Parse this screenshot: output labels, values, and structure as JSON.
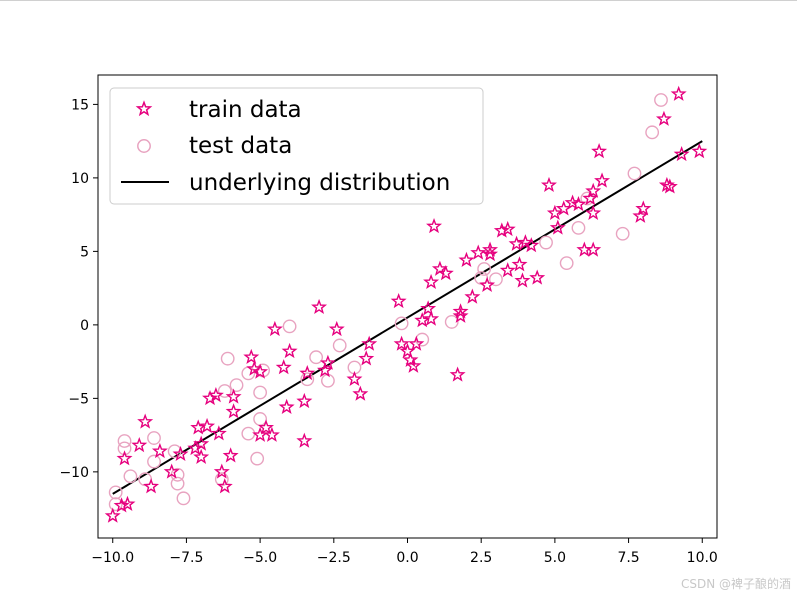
{
  "watermark": "CSDN @裨子酿的酒",
  "chart_data": {
    "type": "scatter",
    "title": "",
    "xlabel": "",
    "ylabel": "",
    "xlim": [
      -10.5,
      10.5
    ],
    "ylim": [
      -14.5,
      17.0
    ],
    "grid": false,
    "legend_position": "top-left",
    "x_ticks": [
      -10.0,
      -7.5,
      -5.0,
      -2.5,
      0.0,
      2.5,
      5.0,
      7.5,
      10.0
    ],
    "x_tick_labels": [
      "−10.0",
      "−7.5",
      "−5.0",
      "−2.5",
      "0.0",
      "2.5",
      "5.0",
      "7.5",
      "10.0"
    ],
    "y_ticks": [
      -10,
      -5,
      0,
      5,
      10,
      15
    ],
    "y_tick_labels": [
      "−10",
      "−5",
      "0",
      "5",
      "10",
      "15"
    ],
    "colors": {
      "train": "#e6007e",
      "test": "#e8a3c0",
      "line": "#000000"
    },
    "series": [
      {
        "name": "train data",
        "marker": "star",
        "points": [
          [
            -10.0,
            -13.0
          ],
          [
            -9.7,
            -12.3
          ],
          [
            -9.5,
            -12.2
          ],
          [
            -9.6,
            -9.1
          ],
          [
            -9.1,
            -8.2
          ],
          [
            -8.9,
            -6.6
          ],
          [
            -8.7,
            -11.0
          ],
          [
            -8.4,
            -8.6
          ],
          [
            -8.0,
            -10.0
          ],
          [
            -7.7,
            -8.8
          ],
          [
            -7.2,
            -8.4
          ],
          [
            -7.1,
            -7.0
          ],
          [
            -7.0,
            -9.0
          ],
          [
            -7.0,
            -8.1
          ],
          [
            -6.8,
            -6.9
          ],
          [
            -6.7,
            -5.0
          ],
          [
            -6.5,
            -4.8
          ],
          [
            -6.4,
            -7.4
          ],
          [
            -6.3,
            -10.0
          ],
          [
            -6.2,
            -11.0
          ],
          [
            -6.0,
            -8.9
          ],
          [
            -5.9,
            -5.9
          ],
          [
            -5.9,
            -4.9
          ],
          [
            -5.3,
            -2.2
          ],
          [
            -5.2,
            -3.0
          ],
          [
            -5.0,
            -3.2
          ],
          [
            -5.0,
            -7.5
          ],
          [
            -4.8,
            -7.0
          ],
          [
            -4.6,
            -7.5
          ],
          [
            -4.5,
            -0.3
          ],
          [
            -4.2,
            -2.9
          ],
          [
            -4.0,
            -1.8
          ],
          [
            -4.1,
            -5.6
          ],
          [
            -3.5,
            -5.2
          ],
          [
            -3.5,
            -7.9
          ],
          [
            -3.4,
            -3.3
          ],
          [
            -3.0,
            1.2
          ],
          [
            -2.8,
            -3.1
          ],
          [
            -2.7,
            -2.6
          ],
          [
            -2.4,
            -0.3
          ],
          [
            -1.8,
            -3.7
          ],
          [
            -1.6,
            -4.7
          ],
          [
            -1.4,
            -2.3
          ],
          [
            -1.3,
            -1.3
          ],
          [
            -0.3,
            1.6
          ],
          [
            -0.2,
            -1.3
          ],
          [
            0.0,
            -1.8
          ],
          [
            0.1,
            -2.4
          ],
          [
            0.2,
            -2.8
          ],
          [
            0.3,
            -1.3
          ],
          [
            0.5,
            0.3
          ],
          [
            0.7,
            1.1
          ],
          [
            0.8,
            0.4
          ],
          [
            0.8,
            2.9
          ],
          [
            0.9,
            6.7
          ],
          [
            1.1,
            3.8
          ],
          [
            1.3,
            3.5
          ],
          [
            1.7,
            -3.4
          ],
          [
            1.8,
            0.6
          ],
          [
            1.8,
            0.9
          ],
          [
            2.0,
            4.4
          ],
          [
            2.2,
            1.9
          ],
          [
            2.4,
            4.9
          ],
          [
            2.7,
            2.7
          ],
          [
            2.8,
            5.1
          ],
          [
            2.8,
            4.8
          ],
          [
            3.2,
            6.4
          ],
          [
            3.4,
            6.5
          ],
          [
            3.4,
            3.7
          ],
          [
            3.7,
            5.5
          ],
          [
            3.8,
            4.1
          ],
          [
            3.9,
            3.0
          ],
          [
            4.0,
            5.6
          ],
          [
            4.2,
            5.4
          ],
          [
            4.4,
            3.2
          ],
          [
            4.8,
            9.5
          ],
          [
            5.0,
            7.6
          ],
          [
            5.1,
            6.6
          ],
          [
            5.3,
            7.9
          ],
          [
            5.6,
            8.3
          ],
          [
            5.8,
            8.2
          ],
          [
            6.0,
            5.1
          ],
          [
            6.2,
            8.6
          ],
          [
            6.3,
            9.1
          ],
          [
            6.3,
            7.6
          ],
          [
            6.3,
            5.1
          ],
          [
            6.5,
            11.8
          ],
          [
            6.6,
            9.8
          ],
          [
            7.9,
            7.4
          ],
          [
            8.0,
            7.9
          ],
          [
            8.7,
            14.0
          ],
          [
            8.8,
            9.5
          ],
          [
            8.9,
            9.4
          ],
          [
            9.2,
            15.7
          ],
          [
            9.3,
            11.6
          ],
          [
            9.9,
            11.8
          ]
        ]
      },
      {
        "name": "test data",
        "marker": "circle",
        "points": [
          [
            -9.9,
            -11.4
          ],
          [
            -9.9,
            -12.2
          ],
          [
            -9.6,
            -7.9
          ],
          [
            -9.6,
            -8.4
          ],
          [
            -9.4,
            -10.3
          ],
          [
            -8.9,
            -10.5
          ],
          [
            -8.6,
            -7.7
          ],
          [
            -8.6,
            -9.3
          ],
          [
            -7.9,
            -8.6
          ],
          [
            -7.8,
            -10.2
          ],
          [
            -7.8,
            -10.8
          ],
          [
            -7.6,
            -11.8
          ],
          [
            -6.3,
            -10.5
          ],
          [
            -6.2,
            -4.5
          ],
          [
            -6.1,
            -2.3
          ],
          [
            -5.8,
            -4.1
          ],
          [
            -5.4,
            -7.4
          ],
          [
            -5.4,
            -3.3
          ],
          [
            -5.1,
            -9.1
          ],
          [
            -5.0,
            -6.4
          ],
          [
            -5.0,
            -4.6
          ],
          [
            -4.9,
            -3.1
          ],
          [
            -4.0,
            -0.1
          ],
          [
            -3.4,
            -3.7
          ],
          [
            -3.1,
            -2.2
          ],
          [
            -2.7,
            -3.8
          ],
          [
            -2.3,
            -1.4
          ],
          [
            -1.8,
            -2.9
          ],
          [
            -0.2,
            0.1
          ],
          [
            0.5,
            -1.0
          ],
          [
            1.5,
            0.2
          ],
          [
            2.5,
            3.2
          ],
          [
            2.6,
            3.8
          ],
          [
            3.0,
            3.1
          ],
          [
            4.7,
            5.6
          ],
          [
            5.4,
            4.2
          ],
          [
            5.8,
            6.6
          ],
          [
            6.1,
            8.6
          ],
          [
            7.3,
            6.2
          ],
          [
            7.7,
            10.3
          ],
          [
            8.3,
            13.1
          ],
          [
            8.6,
            15.3
          ]
        ]
      }
    ],
    "line": {
      "name": "underlying distribution",
      "x": [
        -10.0,
        10.0
      ],
      "y": [
        -11.5,
        12.5
      ]
    }
  }
}
